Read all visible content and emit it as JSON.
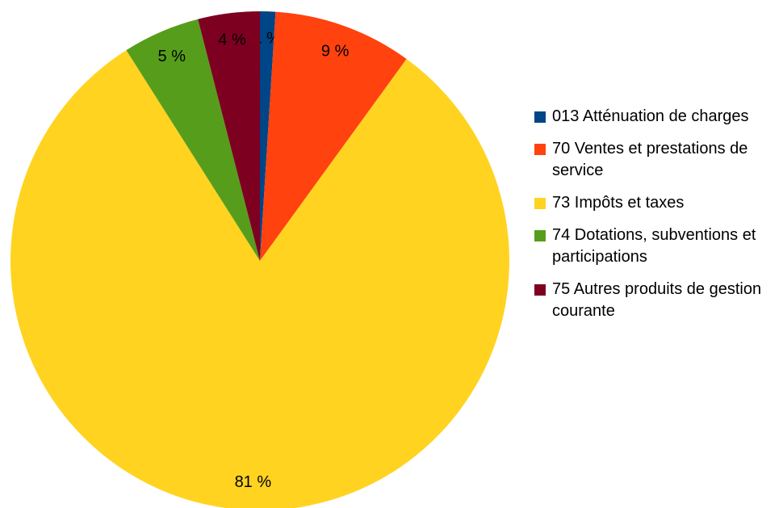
{
  "chart_data": {
    "type": "pie",
    "categories": [
      "013 Atténuation de charges",
      "70 Ventes et prestations de service",
      "73 Impôts et taxes",
      "74 Dotations, subventions et participations",
      "75 Autres produits de gestion courante"
    ],
    "values": [
      1,
      9,
      81,
      5,
      4
    ],
    "value_labels": [
      "1 %",
      "9 %",
      "81 %",
      "5 %",
      "4 %"
    ],
    "colors": [
      "#004586",
      "#ff420e",
      "#ffd320",
      "#579d1c",
      "#7e0021"
    ],
    "legend": "right"
  }
}
